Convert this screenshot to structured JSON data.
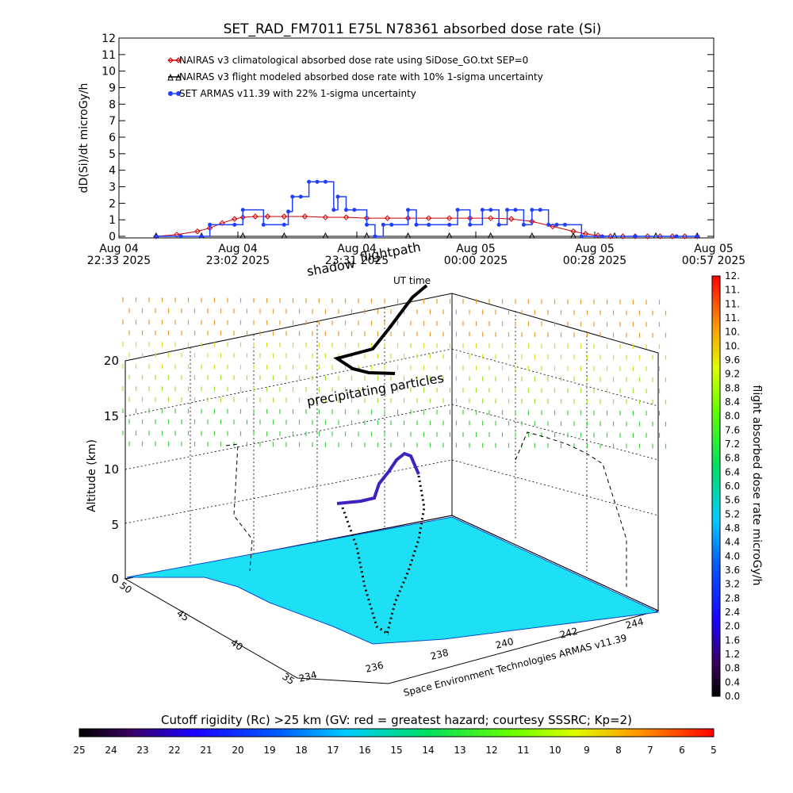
{
  "figure": {
    "title": "SET_RAD_FM7011   E75L N78361 absorbed dose rate (Si)",
    "credit": "Space Environment Technologies ARMAS v11.39"
  },
  "chart_data": [
    {
      "type": "line",
      "ylabel": "dD(Si)/dt microGy/h",
      "ylim": [
        0,
        12
      ],
      "y_ticks": [
        "0",
        "1",
        "2",
        "3",
        "4",
        "5",
        "6",
        "7",
        "8",
        "9",
        "10",
        "11",
        "12"
      ],
      "x_ticks": [
        {
          "l1": "Aug 04",
          "l2": "22:33 2025"
        },
        {
          "l1": "Aug 04",
          "l2": "23:02 2025"
        },
        {
          "l1": "Aug 04",
          "l2": "23:31 2025"
        },
        {
          "l1": "Aug 05",
          "l2": "00:00 2025"
        },
        {
          "l1": "Aug 05",
          "l2": "00:28 2025"
        },
        {
          "l1": "Aug 05",
          "l2": "00:57 2025"
        }
      ],
      "x_minutes_range": [
        0,
        144
      ],
      "legend": [
        {
          "label": "NAIRAS v3 climatological absorbed dose rate using SiDose_GO.txt SEP=0",
          "color": "#cc0000",
          "symbol": "diamond"
        },
        {
          "label": "NAIRAS v3 flight modeled absorbed dose rate with 10% 1-sigma uncertainty",
          "color": "#000000",
          "symbol": "triangle"
        },
        {
          "label": "SET ARMAS v11.39 with 22% 1-sigma uncertainty",
          "color": "#1f3fff",
          "symbol": "dot"
        }
      ],
      "series": [
        {
          "name": "NAIRAS v3 climatological absorbed dose rate using SiDose_GO.txt SEP=0",
          "x": [
            9,
            14,
            19,
            22,
            25,
            28,
            30,
            33,
            36,
            40,
            45,
            50,
            55,
            60,
            65,
            70,
            75,
            80,
            85,
            90,
            95,
            100,
            105,
            110,
            113,
            116,
            119,
            122,
            125,
            128,
            131,
            134,
            137,
            140
          ],
          "y": [
            0,
            0.1,
            0.3,
            0.5,
            0.8,
            1.05,
            1.15,
            1.2,
            1.2,
            1.2,
            1.2,
            1.15,
            1.15,
            1.1,
            1.1,
            1.1,
            1.1,
            1.1,
            1.1,
            1.1,
            1.05,
            0.9,
            0.6,
            0.3,
            0.15,
            0.05,
            0,
            0,
            0,
            0,
            0,
            0,
            0,
            0
          ]
        },
        {
          "name": "NAIRAS v3 flight modeled absorbed dose rate with 10% 1-sigma uncertainty",
          "x": [
            9,
            20,
            30,
            40,
            50,
            60,
            70,
            80,
            90,
            100,
            110,
            120,
            130,
            140
          ],
          "y": [
            0,
            0,
            0,
            0,
            0,
            0,
            0,
            0,
            0,
            0,
            0,
            0,
            0,
            0
          ]
        },
        {
          "name": "SET ARMAS v11.39 with 22% 1-sigma uncertainty",
          "x": [
            9,
            15,
            20,
            22,
            28,
            30,
            35,
            40,
            41,
            42,
            44,
            46,
            48,
            50,
            52,
            53,
            55,
            57,
            60,
            62,
            64,
            66,
            70,
            72,
            75,
            80,
            82,
            85,
            88,
            90,
            92,
            94,
            96,
            98,
            100,
            102,
            104,
            106,
            108,
            112,
            117,
            125,
            135,
            140
          ],
          "y": [
            0,
            0,
            0,
            0.7,
            0.7,
            1.6,
            0.7,
            0.7,
            1.5,
            2.4,
            2.4,
            3.3,
            3.3,
            3.3,
            1.6,
            2.4,
            1.6,
            1.6,
            0.7,
            0,
            0.7,
            0.7,
            1.6,
            0.7,
            0.7,
            0.7,
            1.6,
            0.7,
            1.6,
            1.6,
            0.7,
            1.6,
            1.6,
            0.7,
            1.6,
            1.6,
            0.7,
            0.7,
            0.7,
            0,
            0,
            0,
            0,
            0
          ]
        }
      ]
    },
    {
      "type": "scatter",
      "ylabel": "Altitude (km)",
      "z_ticks": [
        "0",
        "5",
        "10",
        "15",
        "20"
      ],
      "lat_ticks": [
        "35",
        "40",
        "45",
        "50"
      ],
      "lon_ticks": [
        "234",
        "236",
        "238",
        "240",
        "242",
        "244"
      ],
      "annotations": [
        "shadow",
        "flightpath",
        "UT time",
        "precipitating particles"
      ],
      "colorbar_right": {
        "label": "flight absorbed dose rate microGy/h",
        "ticks": [
          "0.0",
          "0.4",
          "0.8",
          "1.2",
          "1.6",
          "2.0",
          "2.4",
          "2.8",
          "3.2",
          "3.6",
          "4.0",
          "4.4",
          "4.8",
          "5.2",
          "5.6",
          "6.0",
          "6.4",
          "6.8",
          "7.2",
          "7.6",
          "8.0",
          "8.4",
          "8.8",
          "9.2",
          "9.6",
          "10.",
          "10.",
          "11.",
          "11.",
          "11.",
          "12."
        ]
      },
      "colorbar_bottom": {
        "label": "Cutoff rigidity (Rc) >25 km (GV: red = greatest hazard; courtesy SSSRC; Kp=2)",
        "ticks": [
          "25",
          "24",
          "23",
          "22",
          "21",
          "20",
          "19",
          "18",
          "17",
          "16",
          "15",
          "14",
          "13",
          "12",
          "11",
          "10",
          "9",
          "8",
          "7",
          "6",
          "5"
        ]
      }
    }
  ]
}
